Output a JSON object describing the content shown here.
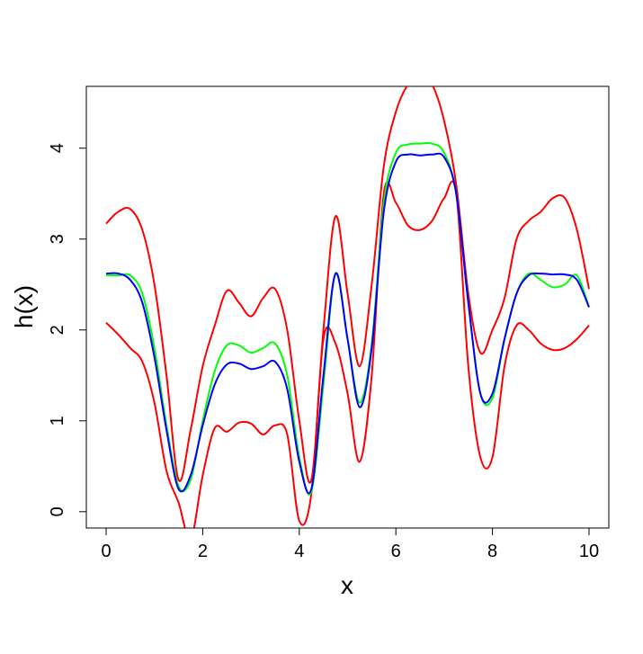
{
  "chart_data": {
    "type": "line",
    "xlabel": "x",
    "ylabel": "h(x)",
    "x": [
      0,
      0.25,
      0.5,
      0.75,
      1,
      1.25,
      1.5,
      1.75,
      2,
      2.25,
      2.5,
      2.75,
      3,
      3.25,
      3.5,
      3.75,
      4,
      4.25,
      4.5,
      4.75,
      5,
      5.25,
      5.5,
      5.75,
      6,
      6.25,
      6.5,
      6.75,
      7,
      7.25,
      7.5,
      7.75,
      8,
      8.25,
      8.5,
      8.75,
      9,
      9.25,
      9.5,
      9.75,
      10
    ],
    "series": [
      {
        "color": "#ff0000",
        "values": [
          3.17,
          3.3,
          3.33,
          3.1,
          2.5,
          1.5,
          0.35,
          0.9,
          1.6,
          2.05,
          2.43,
          2.3,
          2.15,
          2.35,
          2.45,
          2.0,
          1.0,
          0.35,
          2.0,
          3.25,
          2.4,
          1.6,
          2.5,
          3.8,
          4.4,
          4.7,
          4.8,
          4.7,
          4.3,
          3.6,
          2.4,
          1.75,
          2.0,
          2.35,
          3.0,
          3.2,
          3.3,
          3.45,
          3.45,
          3.1,
          2.45
        ]
      },
      {
        "color": "#ff0000",
        "values": [
          2.08,
          1.95,
          1.8,
          1.65,
          1.2,
          0.45,
          0.1,
          -0.3,
          0.4,
          0.92,
          0.88,
          0.98,
          0.97,
          0.85,
          0.95,
          0.85,
          -0.1,
          0.2,
          1.9,
          1.85,
          1.3,
          0.55,
          1.5,
          3.5,
          3.4,
          3.15,
          3.1,
          3.2,
          3.45,
          3.5,
          1.6,
          0.6,
          0.6,
          1.6,
          2.05,
          2.0,
          1.85,
          1.78,
          1.8,
          1.9,
          2.05
        ]
      },
      {
        "color": "#00ff00",
        "values": [
          2.6,
          2.6,
          2.6,
          2.4,
          1.8,
          0.95,
          0.28,
          0.35,
          1.0,
          1.55,
          1.83,
          1.83,
          1.75,
          1.8,
          1.85,
          1.5,
          0.6,
          0.22,
          1.4,
          2.62,
          1.9,
          1.2,
          1.85,
          3.4,
          3.95,
          4.04,
          4.05,
          4.05,
          3.95,
          3.5,
          2.3,
          1.3,
          1.25,
          1.9,
          2.4,
          2.62,
          2.55,
          2.47,
          2.5,
          2.6,
          2.25
        ]
      },
      {
        "color": "#0000ff",
        "values": [
          2.62,
          2.62,
          2.55,
          2.3,
          1.7,
          0.9,
          0.25,
          0.4,
          0.95,
          1.4,
          1.62,
          1.63,
          1.57,
          1.6,
          1.65,
          1.35,
          0.55,
          0.25,
          1.5,
          2.62,
          1.9,
          1.15,
          1.8,
          3.3,
          3.85,
          3.93,
          3.92,
          3.93,
          3.9,
          3.5,
          2.3,
          1.3,
          1.3,
          1.9,
          2.4,
          2.6,
          2.62,
          2.61,
          2.61,
          2.55,
          2.25
        ]
      }
    ],
    "xlim": [
      -0.41,
      10.41
    ],
    "ylim": [
      -0.18,
      4.68
    ],
    "xticks": [
      0,
      2,
      4,
      6,
      8,
      10
    ],
    "yticks": [
      0,
      1,
      2,
      3,
      4
    ]
  }
}
